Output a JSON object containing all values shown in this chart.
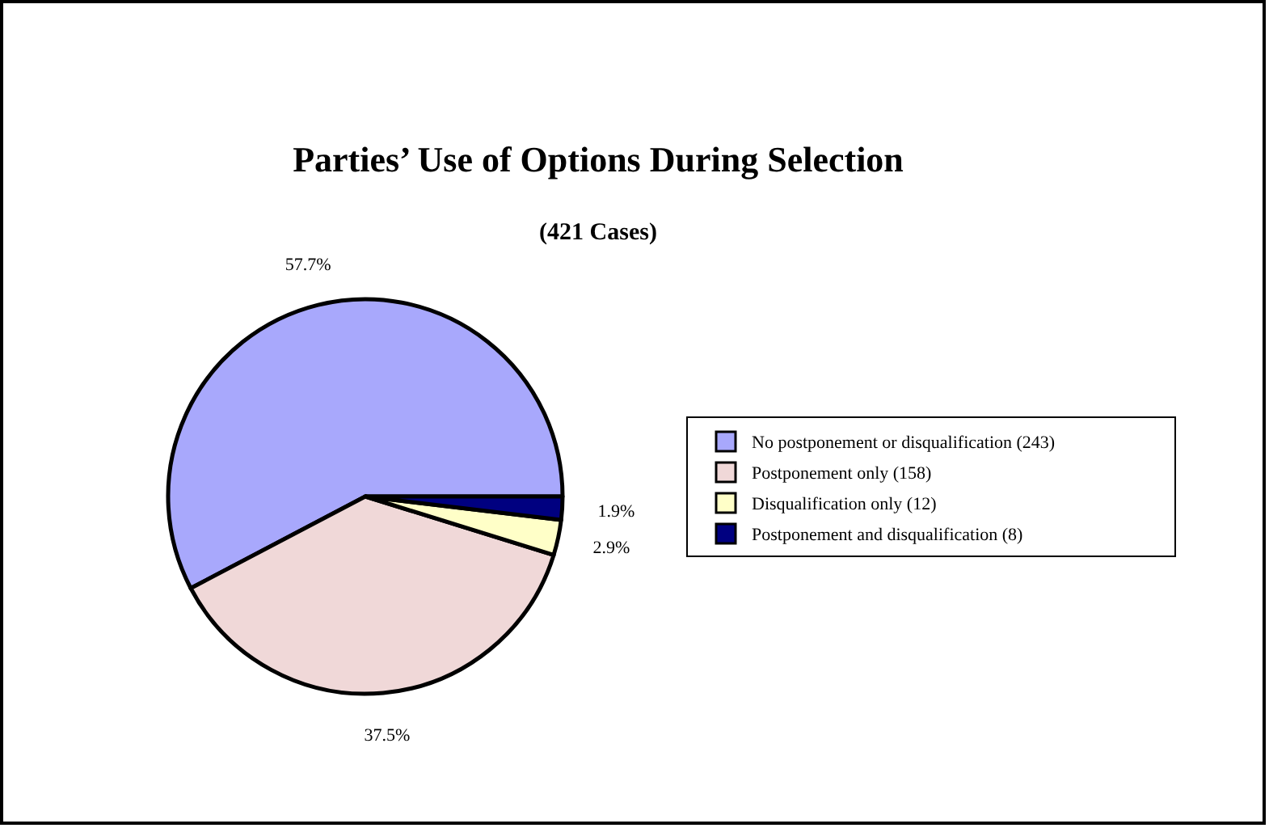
{
  "chart_data": {
    "type": "pie",
    "title": "Parties’ Use of Options During Selection",
    "subtitle": "(421 Cases)",
    "categories": [
      "No postponement or disqualification (243)",
      "Postponement only (158)",
      "Disqualification only (12)",
      "Postponement and disqualification (8)"
    ],
    "values": [
      57.7,
      37.5,
      2.9,
      1.9
    ],
    "value_labels": [
      "57.7%",
      "37.5%",
      "2.9%",
      "1.9%"
    ],
    "colors": [
      "#a8a8fc",
      "#f0d8d8",
      "#ffffc8",
      "#000080"
    ],
    "legend": "right"
  }
}
